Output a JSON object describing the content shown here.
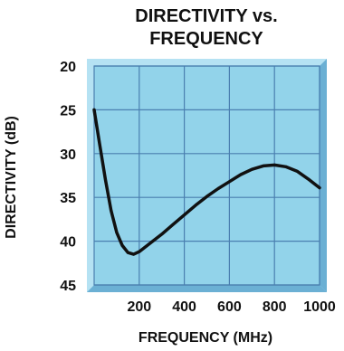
{
  "chart_data": {
    "type": "line",
    "title_lines": [
      "DIRECTIVITY vs.",
      "FREQUENCY"
    ],
    "xlabel": "FREQUENCY (MHz)",
    "ylabel": "DIRECTIVITY (dB)",
    "x_ticks": [
      200,
      400,
      600,
      800,
      1000
    ],
    "y_ticks": [
      20,
      25,
      30,
      35,
      40,
      45
    ],
    "xlim": [
      0,
      1000
    ],
    "ylim": [
      20,
      45
    ],
    "y_inverted": true,
    "grid": true,
    "colors": {
      "plot_bg": "#92d3ea",
      "grid": "#4a7fb0",
      "frame_light": "#b5e2f3",
      "frame_dark": "#6bb0d4",
      "curve": "#111111"
    },
    "series": [
      {
        "x": [
          0,
          25,
          50,
          75,
          100,
          125,
          150,
          175,
          200,
          250,
          300,
          350,
          400,
          450,
          500,
          550,
          600,
          650,
          700,
          750,
          800,
          850,
          900,
          950,
          1000
        ],
        "y": [
          25.0,
          29.0,
          33.0,
          36.5,
          39.0,
          40.5,
          41.3,
          41.5,
          41.2,
          40.2,
          39.2,
          38.1,
          37.0,
          35.9,
          34.9,
          34.0,
          33.2,
          32.4,
          31.8,
          31.4,
          31.3,
          31.5,
          32.0,
          32.9,
          33.9
        ]
      }
    ]
  }
}
